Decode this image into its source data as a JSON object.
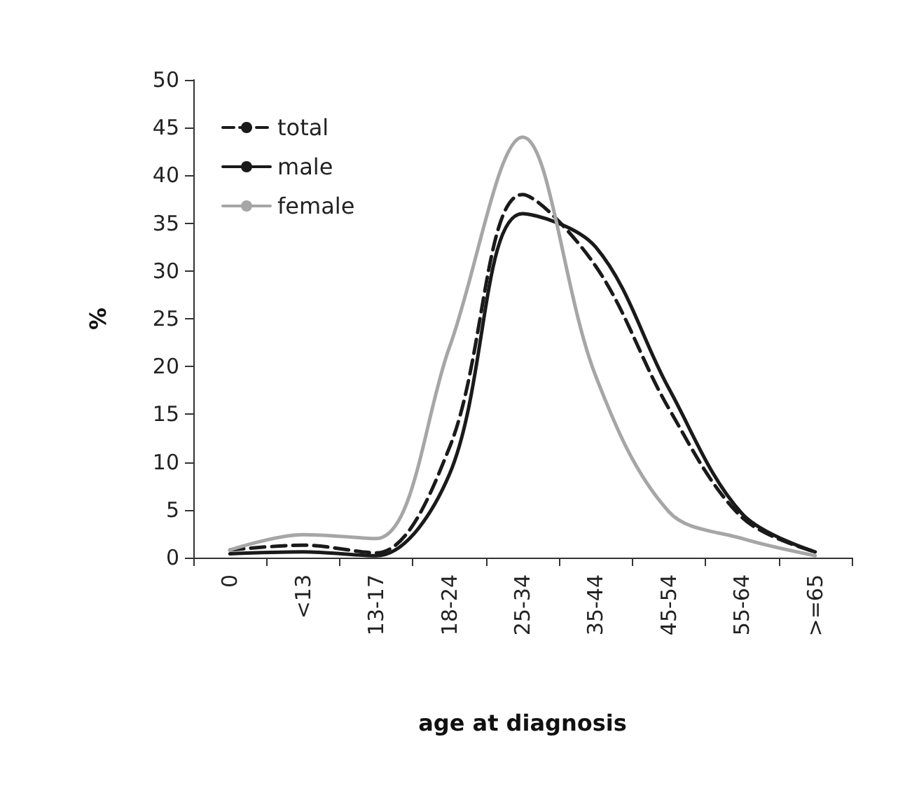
{
  "chart_data": {
    "type": "line",
    "xlabel": "age at diagnosis",
    "ylabel": "%",
    "categories": [
      "0",
      "<13",
      "13-17",
      "18-24",
      "25-34",
      "35-44",
      "45-54",
      "55-64",
      ">=65"
    ],
    "series": [
      {
        "name": "total",
        "color": "#1a1a1a",
        "line_style": "dashed",
        "values": [
          0.8,
          1.3,
          0.5,
          11.5,
          38,
          30.5,
          15.6,
          4.2,
          0.6
        ]
      },
      {
        "name": "male",
        "color": "#1a1a1a",
        "line_style": "solid",
        "values": [
          0.4,
          0.6,
          0.2,
          8.7,
          36,
          32.5,
          17.7,
          4.6,
          0.6
        ]
      },
      {
        "name": "female",
        "color": "#a6a6a6",
        "line_style": "solid",
        "values": [
          0.8,
          2.4,
          2,
          22,
          44,
          19,
          4.8,
          2,
          0.2
        ]
      }
    ],
    "ylim": [
      0,
      50
    ],
    "yticks": [
      0,
      5,
      10,
      15,
      20,
      25,
      30,
      35,
      40,
      45,
      50
    ],
    "grid": false,
    "legend": "top left",
    "marker": "none"
  }
}
